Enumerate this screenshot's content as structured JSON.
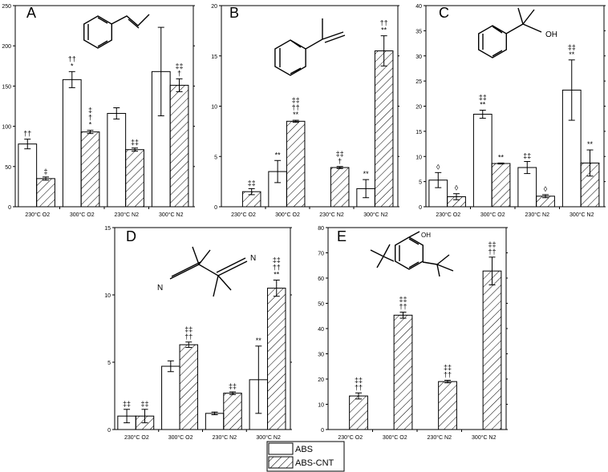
{
  "colors": {
    "abs_fill": "#ffffff",
    "cnt_hatch": "#000000",
    "axis": "#000000"
  },
  "legend": {
    "abs": "ABS",
    "cnt": "ABS-CNT",
    "position": "bottom-center"
  },
  "chart_data": [
    {
      "panel": "A",
      "type": "bar",
      "structure": "styrene",
      "categories": [
        "230°C O2",
        "300°C O2",
        "230°C N2",
        "300°C N2"
      ],
      "ylim": [
        0,
        250
      ],
      "yticks": [
        "0",
        "50",
        "100",
        "150",
        "200",
        "250"
      ],
      "series": [
        {
          "name": "ABS",
          "values": [
            78,
            158,
            116,
            168
          ],
          "errors": [
            6,
            10,
            7,
            55
          ]
        },
        {
          "name": "ABS-CNT",
          "values": [
            35,
            93,
            71,
            151
          ],
          "errors": [
            2,
            2,
            2,
            8
          ]
        }
      ],
      "annotations": [
        {
          "category": 0,
          "series": 0,
          "lines": [
            "††"
          ]
        },
        {
          "category": 0,
          "series": 1,
          "lines": [
            "‡"
          ]
        },
        {
          "category": 1,
          "series": 0,
          "lines": [
            "††",
            "*"
          ]
        },
        {
          "category": 1,
          "series": 1,
          "lines": [
            "‡",
            "†",
            "*"
          ]
        },
        {
          "category": 2,
          "series": 1,
          "lines": [
            "‡‡"
          ]
        },
        {
          "category": 3,
          "series": 1,
          "lines": [
            "‡‡",
            "†"
          ]
        }
      ]
    },
    {
      "panel": "B",
      "type": "bar",
      "structure": "alpha-methylstyrene",
      "categories": [
        "230°C O2",
        "300°C O2",
        "230°C N2",
        "300°C N2"
      ],
      "ylim": [
        0,
        20
      ],
      "yticks": [
        "0",
        "5",
        "10",
        "15",
        "20"
      ],
      "series": [
        {
          "name": "ABS",
          "values": [
            0,
            3.5,
            0,
            1.8
          ],
          "errors": [
            0,
            1.1,
            0,
            0.9
          ]
        },
        {
          "name": "ABS-CNT",
          "values": [
            1.5,
            8.5,
            3.9,
            15.5
          ],
          "errors": [
            0.3,
            0.1,
            0.1,
            1.5
          ]
        }
      ],
      "annotations": [
        {
          "category": 0,
          "series": 1,
          "lines": [
            "‡‡"
          ]
        },
        {
          "category": 1,
          "series": 0,
          "lines": [
            "**"
          ]
        },
        {
          "category": 1,
          "series": 1,
          "lines": [
            "‡‡",
            "††",
            "**"
          ]
        },
        {
          "category": 2,
          "series": 1,
          "lines": [
            "‡‡",
            "†"
          ]
        },
        {
          "category": 3,
          "series": 0,
          "lines": [
            "**"
          ]
        },
        {
          "category": 3,
          "series": 1,
          "lines": [
            "††",
            "**"
          ]
        }
      ]
    },
    {
      "panel": "C",
      "type": "bar",
      "structure": "2-phenyl-2-propanol",
      "structure_label": "OH",
      "categories": [
        "230°C O2",
        "300°C O2",
        "230°C N2",
        "300°C N2"
      ],
      "ylim": [
        0,
        40
      ],
      "yticks": [
        "0",
        "5",
        "10",
        "15",
        "20",
        "25",
        "30",
        "35",
        "40"
      ],
      "series": [
        {
          "name": "ABS",
          "values": [
            5.3,
            18.4,
            7.8,
            23.2
          ],
          "errors": [
            1.5,
            0.8,
            1.2,
            6.0
          ]
        },
        {
          "name": "ABS-CNT",
          "values": [
            2.0,
            8.6,
            2.1,
            8.7
          ],
          "errors": [
            0.6,
            0.1,
            0.3,
            2.6
          ]
        }
      ],
      "annotations": [
        {
          "category": 0,
          "series": 0,
          "lines": [
            "◊"
          ]
        },
        {
          "category": 0,
          "series": 1,
          "lines": [
            "◊"
          ]
        },
        {
          "category": 1,
          "series": 0,
          "lines": [
            "‡‡",
            "**"
          ]
        },
        {
          "category": 1,
          "series": 1,
          "lines": [
            "**"
          ]
        },
        {
          "category": 2,
          "series": 0,
          "lines": [
            "‡‡"
          ]
        },
        {
          "category": 2,
          "series": 1,
          "lines": [
            "◊"
          ]
        },
        {
          "category": 3,
          "series": 0,
          "lines": [
            "‡‡",
            "**"
          ]
        },
        {
          "category": 3,
          "series": 1,
          "lines": [
            "**"
          ]
        }
      ]
    },
    {
      "panel": "D",
      "type": "bar",
      "structure": "tetramethylsuccinonitrile",
      "structure_labels": [
        "N",
        "N"
      ],
      "categories": [
        "230°C O2",
        "300°C O2",
        "230°C N2",
        "300°C N2"
      ],
      "ylim": [
        0,
        15
      ],
      "yticks": [
        "0",
        "5",
        "10",
        "15"
      ],
      "series": [
        {
          "name": "ABS",
          "values": [
            1.0,
            4.7,
            1.2,
            3.7
          ],
          "errors": [
            0.5,
            0.4,
            0.1,
            2.5
          ]
        },
        {
          "name": "ABS-CNT",
          "values": [
            1.0,
            6.3,
            2.7,
            10.5
          ],
          "errors": [
            0.5,
            0.2,
            0.1,
            0.6
          ]
        }
      ],
      "annotations": [
        {
          "category": 0,
          "series": 0,
          "lines": [
            "‡‡"
          ]
        },
        {
          "category": 0,
          "series": 1,
          "lines": [
            "‡‡"
          ]
        },
        {
          "category": 1,
          "series": 1,
          "lines": [
            "‡‡",
            "††"
          ]
        },
        {
          "category": 2,
          "series": 1,
          "lines": [
            "‡‡"
          ]
        },
        {
          "category": 3,
          "series": 0,
          "lines": [
            "**"
          ]
        },
        {
          "category": 3,
          "series": 1,
          "lines": [
            "‡‡",
            "††",
            "**"
          ]
        }
      ]
    },
    {
      "panel": "E",
      "type": "bar",
      "structure": "2,4-di-tert-butylphenol",
      "structure_label": "OH",
      "categories": [
        "230°C O2",
        "300°C O2",
        "230°C N2",
        "300°C N2"
      ],
      "ylim": [
        0,
        80
      ],
      "yticks": [
        "0",
        "10",
        "20",
        "30",
        "40",
        "50",
        "60",
        "70",
        "80"
      ],
      "series": [
        {
          "name": "ABS",
          "values": [
            0,
            0,
            0,
            0
          ],
          "errors": [
            0,
            0,
            0,
            0
          ]
        },
        {
          "name": "ABS-CNT",
          "values": [
            13.3,
            45.3,
            19.0,
            62.8
          ],
          "errors": [
            1.2,
            1.2,
            0.5,
            5.5
          ]
        }
      ],
      "annotations": [
        {
          "category": 0,
          "series": 1,
          "lines": [
            "‡‡",
            "††"
          ]
        },
        {
          "category": 1,
          "series": 1,
          "lines": [
            "‡‡",
            "††"
          ]
        },
        {
          "category": 2,
          "series": 1,
          "lines": [
            "‡‡",
            "††"
          ]
        },
        {
          "category": 3,
          "series": 1,
          "lines": [
            "‡‡",
            "††"
          ]
        }
      ]
    }
  ]
}
